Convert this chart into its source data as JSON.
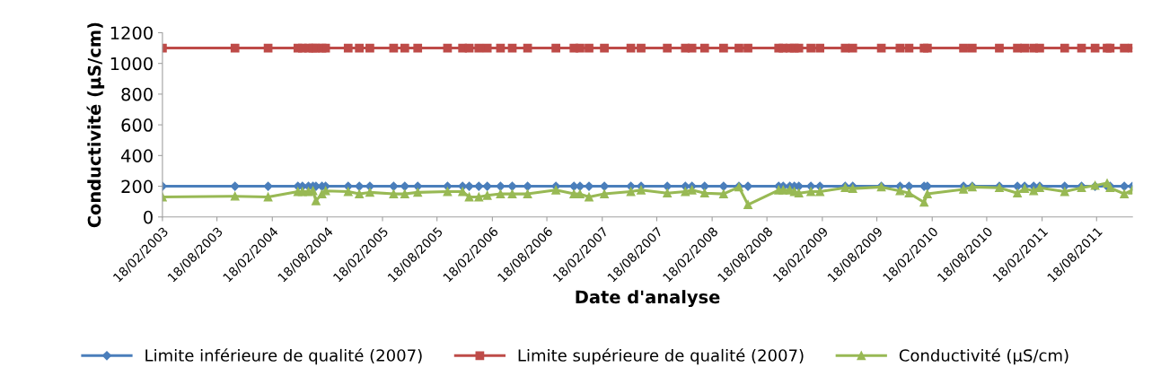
{
  "chart_data": {
    "type": "line",
    "xlabel": "Date d'analyse",
    "ylabel": "Conductivité (µS/cm)",
    "x": [
      "2003-02-18",
      "2003-10-17",
      "2004-02-04",
      "2004-05-13",
      "2004-05-28",
      "2004-06-17",
      "2004-07-02",
      "2004-07-12",
      "2004-08-01",
      "2004-08-13",
      "2004-10-27",
      "2004-12-03",
      "2005-01-07",
      "2005-03-27",
      "2005-05-03",
      "2005-06-15",
      "2005-09-22",
      "2005-11-11",
      "2005-12-03",
      "2006-01-04",
      "2006-02-01",
      "2006-03-17",
      "2006-04-25",
      "2006-06-15",
      "2006-09-17",
      "2006-11-16",
      "2006-12-06",
      "2007-01-05",
      "2007-02-25",
      "2007-05-24",
      "2007-06-27",
      "2007-09-22",
      "2007-11-21",
      "2007-12-13",
      "2008-01-24",
      "2008-03-27",
      "2008-05-17",
      "2008-06-16",
      "2008-09-26",
      "2008-10-11",
      "2008-11-02",
      "2008-11-17",
      "2008-12-02",
      "2009-01-11",
      "2009-02-10",
      "2009-05-05",
      "2009-05-30",
      "2009-09-02",
      "2009-11-03",
      "2009-12-03",
      "2010-01-22",
      "2010-02-02",
      "2010-06-02",
      "2010-07-01",
      "2010-09-29",
      "2010-11-28",
      "2010-12-22",
      "2011-01-21",
      "2011-02-10",
      "2011-05-04",
      "2011-06-29",
      "2011-08-13",
      "2011-09-22",
      "2011-10-02",
      "2011-11-18",
      "2011-12-15"
    ],
    "series": [
      {
        "name": "Limite inférieure de qualité (2007)",
        "color": "#4a7ebb",
        "marker": "diamond",
        "values": [
          200,
          200,
          200,
          200,
          200,
          200,
          200,
          200,
          200,
          200,
          200,
          200,
          200,
          200,
          200,
          200,
          200,
          200,
          200,
          200,
          200,
          200,
          200,
          200,
          200,
          200,
          200,
          200,
          200,
          200,
          200,
          200,
          200,
          200,
          200,
          200,
          200,
          200,
          200,
          200,
          200,
          200,
          200,
          200,
          200,
          200,
          200,
          200,
          200,
          200,
          200,
          200,
          200,
          200,
          200,
          200,
          200,
          200,
          200,
          200,
          200,
          200,
          200,
          200,
          200,
          200
        ]
      },
      {
        "name": "Limite supérieure de qualité (2007)",
        "color": "#be4b48",
        "marker": "square",
        "values": [
          1100,
          1100,
          1100,
          1100,
          1100,
          1100,
          1100,
          1100,
          1100,
          1100,
          1100,
          1100,
          1100,
          1100,
          1100,
          1100,
          1100,
          1100,
          1100,
          1100,
          1100,
          1100,
          1100,
          1100,
          1100,
          1100,
          1100,
          1100,
          1100,
          1100,
          1100,
          1100,
          1100,
          1100,
          1100,
          1100,
          1100,
          1100,
          1100,
          1100,
          1100,
          1100,
          1100,
          1100,
          1100,
          1100,
          1100,
          1100,
          1100,
          1100,
          1100,
          1100,
          1100,
          1100,
          1100,
          1100,
          1100,
          1100,
          1100,
          1100,
          1100,
          1100,
          1100,
          1100,
          1100,
          1100
        ]
      },
      {
        "name": "Conductivité (µS/cm)",
        "color": "#98b954",
        "marker": "triangle",
        "values": [
          130,
          135,
          130,
          165,
          165,
          165,
          170,
          105,
          150,
          170,
          165,
          150,
          160,
          150,
          150,
          160,
          165,
          165,
          130,
          130,
          140,
          150,
          150,
          150,
          175,
          150,
          150,
          130,
          150,
          165,
          175,
          155,
          165,
          175,
          155,
          150,
          195,
          80,
          175,
          175,
          175,
          165,
          155,
          165,
          165,
          190,
          185,
          195,
          170,
          155,
          95,
          150,
          180,
          195,
          190,
          155,
          185,
          170,
          190,
          165,
          190,
          205,
          220,
          190,
          150,
          175
        ]
      }
    ],
    "xlim": [
      "2003-02-18",
      "2011-12-15"
    ],
    "xticks": [
      {
        "value": "2003-02-18",
        "label": "18/02/2003"
      },
      {
        "value": "2003-08-18",
        "label": "18/08/2003"
      },
      {
        "value": "2004-02-18",
        "label": "18/02/2004"
      },
      {
        "value": "2004-08-18",
        "label": "18/08/2004"
      },
      {
        "value": "2005-02-18",
        "label": "18/02/2005"
      },
      {
        "value": "2005-08-18",
        "label": "18/08/2005"
      },
      {
        "value": "2006-02-18",
        "label": "18/02/2006"
      },
      {
        "value": "2006-08-18",
        "label": "18/08/2006"
      },
      {
        "value": "2007-02-18",
        "label": "18/02/2007"
      },
      {
        "value": "2007-08-18",
        "label": "18/08/2007"
      },
      {
        "value": "2008-02-18",
        "label": "18/02/2008"
      },
      {
        "value": "2008-08-18",
        "label": "18/08/2008"
      },
      {
        "value": "2009-02-18",
        "label": "18/02/2009"
      },
      {
        "value": "2009-08-18",
        "label": "18/08/2009"
      },
      {
        "value": "2010-02-18",
        "label": "18/02/2010"
      },
      {
        "value": "2010-08-18",
        "label": "18/08/2010"
      },
      {
        "value": "2011-02-18",
        "label": "18/02/2011"
      },
      {
        "value": "2011-08-18",
        "label": "18/08/2011"
      }
    ],
    "ylim": [
      0,
      1200
    ],
    "yticks": [
      0,
      200,
      400,
      600,
      800,
      1000,
      1200
    ],
    "grid": false,
    "legend": "bottom"
  }
}
